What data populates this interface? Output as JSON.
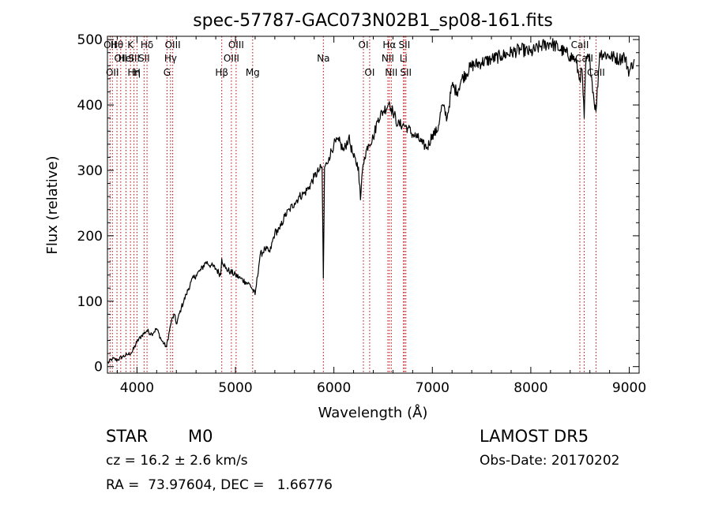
{
  "chart_data": {
    "type": "line",
    "title": "spec-57787-GAC073N02B1_sp08-161.fits",
    "xlabel": "Wavelength (Å)",
    "ylabel": "Flux (relative)",
    "xlim": [
      3700,
      9100
    ],
    "ylim": [
      -10,
      505
    ],
    "x_ticks": [
      4000,
      5000,
      6000,
      7000,
      8000,
      9000
    ],
    "y_ticks": [
      0,
      100,
      200,
      300,
      400,
      500
    ],
    "grid": false,
    "series": [
      {
        "x": [
          3700,
          3750,
          3800,
          3850,
          3900,
          3950,
          4000,
          4050,
          4100,
          4150,
          4200,
          4250,
          4300,
          4330,
          4350,
          4380,
          4400,
          4450,
          4500,
          4550,
          4600,
          4650,
          4700,
          4750,
          4800,
          4850,
          4861,
          4900,
          4950,
          5000,
          5050,
          5100,
          5150,
          5200,
          5250,
          5300,
          5350,
          5400,
          5450,
          5500,
          5550,
          5600,
          5650,
          5700,
          5750,
          5800,
          5850,
          5880,
          5893,
          5905,
          5930,
          5950,
          6000,
          6050,
          6100,
          6150,
          6200,
          6250,
          6270,
          6290,
          6310,
          6350,
          6400,
          6450,
          6500,
          6550,
          6563,
          6580,
          6600,
          6650,
          6700,
          6750,
          6800,
          6850,
          6900,
          6950,
          7000,
          7050,
          7100,
          7150,
          7200,
          7250,
          7300,
          7400,
          7500,
          7600,
          7700,
          7800,
          7900,
          8000,
          8100,
          8200,
          8300,
          8400,
          8450,
          8498,
          8520,
          8542,
          8560,
          8600,
          8640,
          8662,
          8700,
          8800,
          8900,
          8950,
          9000,
          9050
        ],
        "y": [
          5,
          12,
          10,
          15,
          18,
          22,
          38,
          48,
          55,
          50,
          58,
          40,
          30,
          55,
          70,
          80,
          65,
          90,
          110,
          130,
          140,
          148,
          160,
          155,
          150,
          140,
          165,
          150,
          145,
          140,
          135,
          130,
          125,
          110,
          170,
          180,
          175,
          205,
          210,
          230,
          240,
          250,
          260,
          265,
          275,
          290,
          300,
          305,
          135,
          305,
          310,
          320,
          340,
          345,
          330,
          350,
          320,
          305,
          255,
          300,
          320,
          340,
          350,
          380,
          390,
          400,
          405,
          395,
          390,
          370,
          370,
          365,
          355,
          350,
          340,
          335,
          355,
          360,
          400,
          380,
          430,
          420,
          440,
          460,
          465,
          470,
          475,
          480,
          485,
          480,
          490,
          495,
          485,
          475,
          470,
          440,
          455,
          380,
          470,
          470,
          410,
          390,
          480,
          475,
          470,
          475,
          450,
          470
        ]
      }
    ],
    "lines": [
      {
        "x": 3727,
        "top": "OII"
      },
      {
        "x": 3750,
        "bottom": "OII"
      },
      {
        "x": 3797,
        "top": "Hθ"
      },
      {
        "x": 3835,
        "mid": "OII"
      },
      {
        "x": 3889,
        "mid": "HeI"
      },
      {
        "x": 3934,
        "top": "K"
      },
      {
        "x": 3970,
        "bottom": "Hη",
        "mid": "SII"
      },
      {
        "x": 4000,
        "bottom": "H"
      },
      {
        "x": 4072,
        "mid": "SII"
      },
      {
        "x": 4102,
        "top": "Hδ"
      },
      {
        "x": 4305,
        "bottom": "G"
      },
      {
        "x": 4341,
        "mid": "Hγ"
      },
      {
        "x": 4363,
        "top": "OIII"
      },
      {
        "x": 4861,
        "bottom": "Hβ"
      },
      {
        "x": 4959,
        "mid": "OIII"
      },
      {
        "x": 5007,
        "top": "OIII"
      },
      {
        "x": 5175,
        "bottom": "Mg"
      },
      {
        "x": 5893,
        "mid": "Na"
      },
      {
        "x": 6300,
        "top": "OI"
      },
      {
        "x": 6363,
        "bottom": "OI"
      },
      {
        "x": 6548,
        "mid": "NII"
      },
      {
        "x": 6563,
        "top": "Hα"
      },
      {
        "x": 6583,
        "bottom": "NII"
      },
      {
        "x": 6707,
        "mid": "Li"
      },
      {
        "x": 6716,
        "top": "SII"
      },
      {
        "x": 6731,
        "bottom": "SII"
      },
      {
        "x": 8498,
        "top": "CaII"
      },
      {
        "x": 8542,
        "mid": "CaII"
      },
      {
        "x": 8662,
        "bottom": "CaII"
      }
    ]
  },
  "info": {
    "object_class": "STAR",
    "subclass": "M0",
    "survey": "LAMOST DR5",
    "cz": "cz = 16.2 ± 2.6 km/s",
    "obs_date": "Obs-Date: 20170202",
    "coords": "RA =  73.97604, DEC =   1.66776"
  },
  "colors": {
    "spectrum": "#000000",
    "lines": "#c00000",
    "axes": "#000000",
    "background": "#ffffff"
  }
}
